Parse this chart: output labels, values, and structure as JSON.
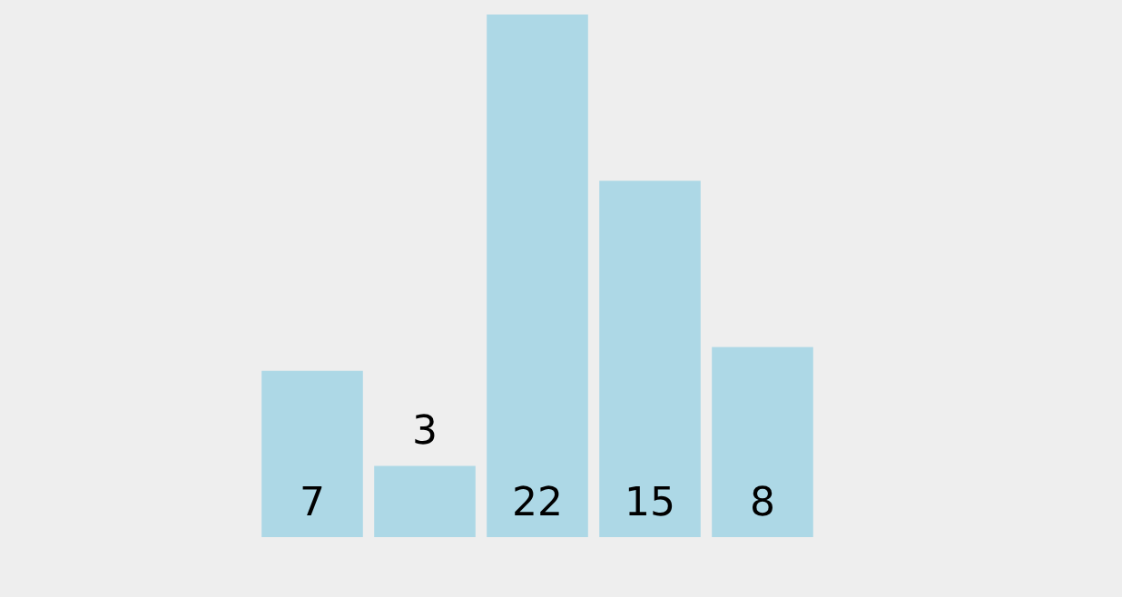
{
  "chart_data": {
    "type": "bar",
    "categories": [
      null,
      null,
      null,
      null,
      null
    ],
    "values": [
      7,
      3,
      22,
      15,
      8
    ],
    "color": "#add8e6",
    "data_labels": true,
    "tick_labels": false
  }
}
